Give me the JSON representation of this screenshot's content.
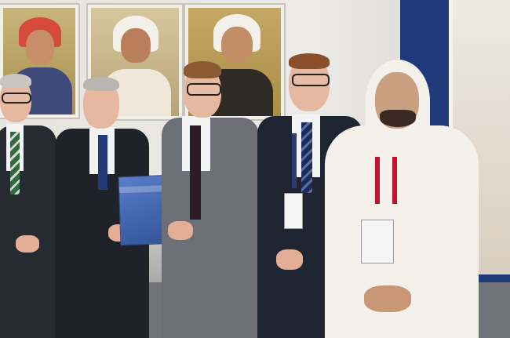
{
  "image": {
    "description_tag": "photo",
    "subjects": [
      {
        "name": "man-left-edge"
      },
      {
        "name": "man-holding-folder"
      },
      {
        "name": "man-center-glasses"
      },
      {
        "name": "man-dark-suit"
      },
      {
        "name": "man-traditional-dress"
      }
    ],
    "colors": {
      "wall": "#e7e4df",
      "suit_dark": "#1f2329",
      "suit_gray": "#6c6f75",
      "folder_blue": "#4063ab",
      "panel_blue": "#1f3a7a",
      "thobe_white": "#f4f1ea"
    }
  }
}
